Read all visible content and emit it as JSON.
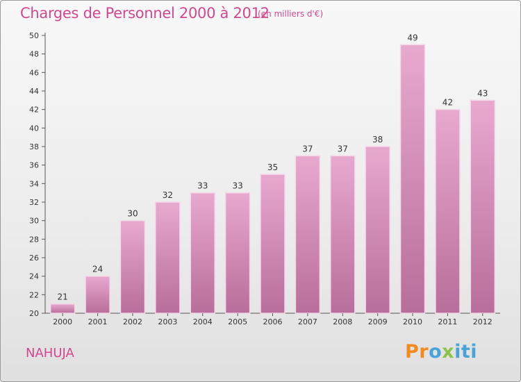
{
  "title": "Charges de Personnel 2000 à 2012",
  "subtitle": "(en milliers d'€)",
  "commune": "NAHUJA",
  "logo": {
    "p1": "Pr",
    "p2": "o",
    "p3": "x",
    "p4": "iti"
  },
  "colors": {
    "bar": "#cf86b2",
    "bar_edge": "#ffffff",
    "accent": "#d4478e"
  },
  "chart_data": {
    "type": "bar",
    "categories": [
      "2000",
      "2001",
      "2002",
      "2003",
      "2004",
      "2005",
      "2006",
      "2007",
      "2008",
      "2009",
      "2010",
      "2011",
      "2012"
    ],
    "values": [
      21,
      24,
      30,
      32,
      33,
      33,
      35,
      37,
      37,
      38,
      49,
      42,
      43
    ],
    "title": "Charges de Personnel 2000 à 2012",
    "xlabel": "",
    "ylabel": "",
    "ylim": [
      20,
      50
    ],
    "yticks": [
      20,
      22,
      24,
      26,
      28,
      30,
      32,
      34,
      36,
      38,
      40,
      42,
      44,
      46,
      48,
      50
    ],
    "grid": false,
    "legend": "none"
  }
}
